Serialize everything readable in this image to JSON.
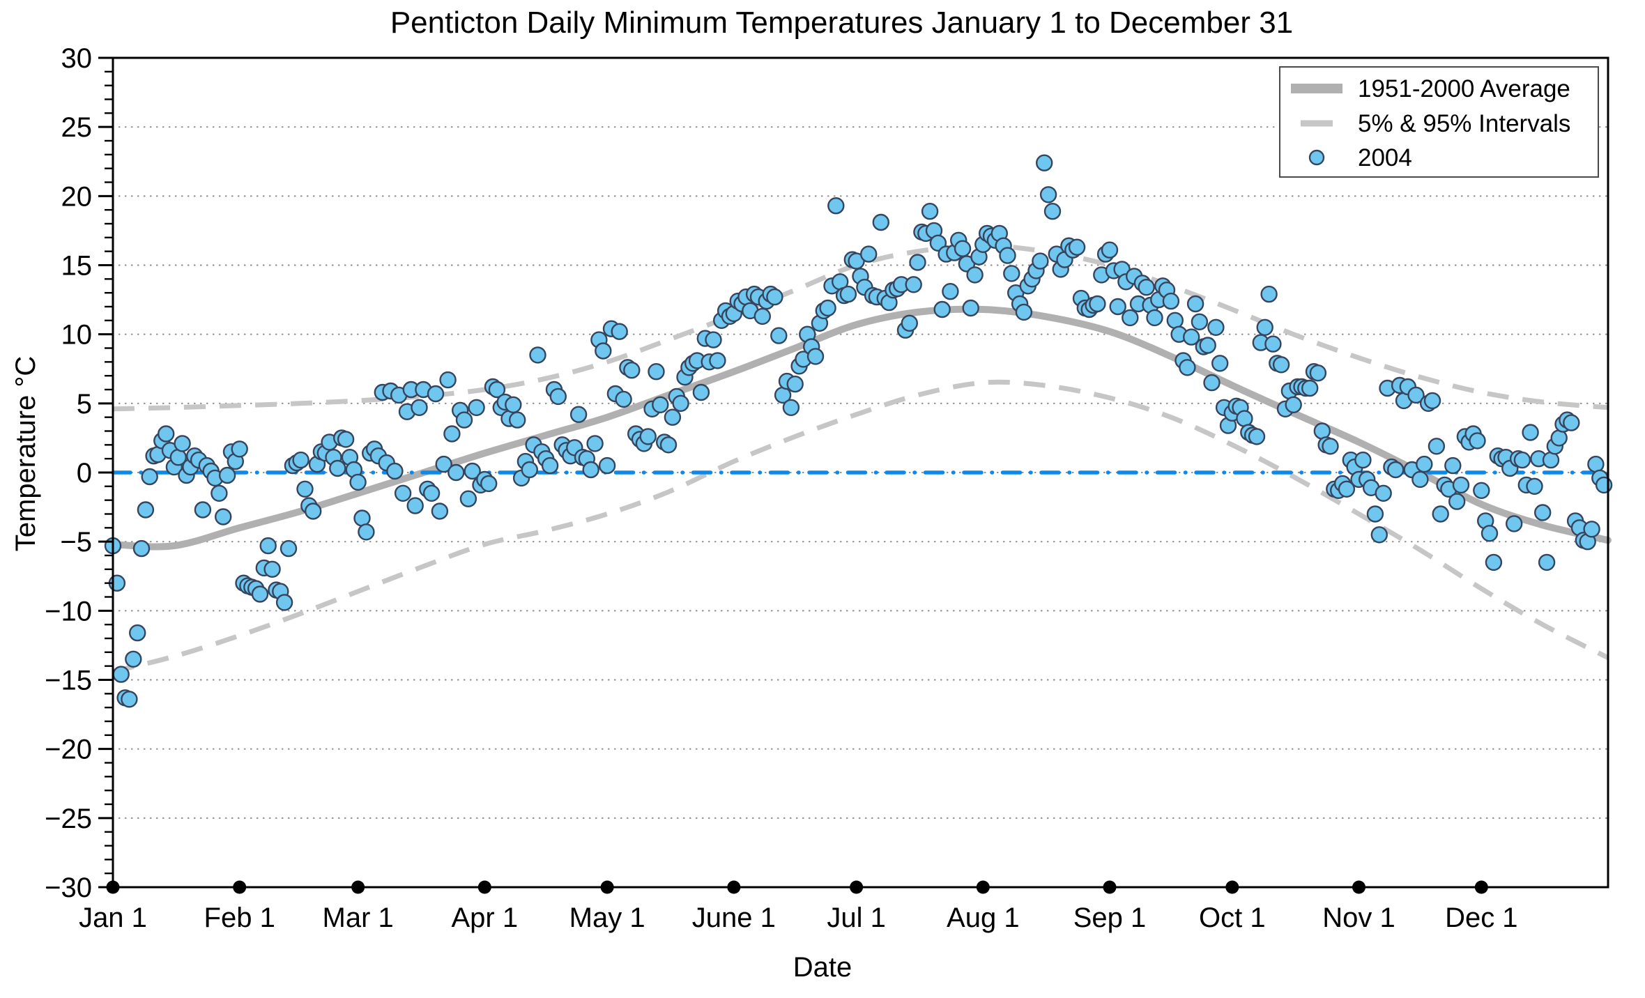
{
  "chart_data": {
    "type": "scatter",
    "title": "Penticton Daily Minimum Temperatures January 1 to December 31",
    "xlabel": "Date",
    "ylabel": "Temperature °C",
    "ylim": [
      -30,
      30
    ],
    "grid": true,
    "y_ticks": [
      30,
      25,
      20,
      15,
      10,
      5,
      0,
      -5,
      -10,
      -15,
      -20,
      -25,
      -30
    ],
    "y_minor_tick_step": 1,
    "x_tick_labels": [
      "Jan 1",
      "Feb 1",
      "Mar 1",
      "Apr 1",
      "May 1",
      "June 1",
      "Jul 1",
      "Aug 1",
      "Sep 1",
      "Oct 1",
      "Nov 1",
      "Dec 1"
    ],
    "month_start_days": [
      0,
      31,
      60,
      91,
      121,
      152,
      182,
      213,
      244,
      274,
      305,
      335
    ],
    "days_in_year": 366,
    "zero_reference_line": {
      "value": 0,
      "color": "#0f88e8",
      "style": "dash-dot"
    },
    "colors": {
      "marker_fill": "#6fc7f0",
      "marker_edge": "#36455e",
      "average_line": "#b0b0b0",
      "interval_line": "#c6c6c6",
      "gridline": "#8f8f8f",
      "axis": "#000000"
    },
    "legend": {
      "position": "top-right",
      "entries": [
        {
          "label": "1951-2000 Average",
          "swatch": "thick-line",
          "color": "#b0b0b0"
        },
        {
          "label": "5% & 95% Intervals",
          "swatch": "dashed-line",
          "color": "#c6c6c6"
        },
        {
          "label": "2004",
          "swatch": "circle-marker",
          "fill": "#6fc7f0",
          "edge": "#36455e"
        }
      ]
    },
    "series": [
      {
        "name": "2004",
        "type": "scatter",
        "unit": "°C",
        "daily_min_temp_c": [
          -5.3,
          -8,
          -14.6,
          -16.3,
          -16.4,
          -13.5,
          -11.6,
          -5.5,
          -2.7,
          -0.3,
          1.2,
          1.3,
          2.3,
          2.8,
          1.6,
          0.4,
          1.1,
          2.1,
          -0.2,
          0.4,
          1.2,
          0.9,
          -2.7,
          0.5,
          0.1,
          -0.4,
          -1.5,
          -3.2,
          -0.2,
          1.5,
          0.8,
          1.7,
          -8,
          -8.2,
          -8.3,
          -8.4,
          -8.8,
          -6.9,
          -5.3,
          -7,
          -8.5,
          -8.6,
          -9.4,
          -5.5,
          0.5,
          0.7,
          0.9,
          -1.2,
          -2.4,
          -2.8,
          0.6,
          1.5,
          1.4,
          2.2,
          1.1,
          0.3,
          2.5,
          2.4,
          1.1,
          0.2,
          -0.7,
          -3.3,
          -4.3,
          1.4,
          1.7,
          1.2,
          5.8,
          0.7,
          5.9,
          0.1,
          5.6,
          -1.5,
          4.4,
          6,
          -2.4,
          4.7,
          6,
          -1.2,
          -1.5,
          5.7,
          -2.8,
          0.6,
          6.7,
          2.8,
          0,
          4.5,
          3.8,
          -1.9,
          0.1,
          4.7,
          -0.9,
          -0.5,
          -0.8,
          6.2,
          6,
          4.7,
          5.1,
          3.9,
          4.9,
          3.8,
          -0.4,
          0.8,
          0.2,
          2,
          8.5,
          1.5,
          1,
          0.5,
          6,
          5.5,
          2,
          1.6,
          1.2,
          1.8,
          4.2,
          1.1,
          1,
          0.2,
          2.1,
          9.6,
          8.8,
          0.5,
          10.4,
          5.7,
          10.2,
          5.3,
          7.6,
          7.4,
          2.8,
          2.4,
          2.1,
          2.6,
          4.6,
          7.3,
          4.9,
          2.2,
          2,
          4,
          5.5,
          5,
          6.9,
          7.6,
          7.9,
          8.1,
          5.8,
          9.7,
          8,
          9.6,
          8.1,
          11,
          11.7,
          11.3,
          11.5,
          12.4,
          12.2,
          12.7,
          11.7,
          12.9,
          12.7,
          11.3,
          12.4,
          12.9,
          12.7,
          9.9,
          5.6,
          6.6,
          4.7,
          6.4,
          7.7,
          8.2,
          10,
          9.1,
          8.4,
          10.8,
          11.7,
          11.9,
          13.5,
          19.3,
          13.8,
          12.8,
          12.9,
          15.4,
          15.3,
          14.2,
          13.4,
          15.8,
          12.8,
          12.7,
          18.1,
          12.6,
          12.3,
          13.2,
          13.3,
          13.6,
          10.3,
          10.8,
          13.6,
          15.2,
          17.4,
          17.3,
          18.9,
          17.5,
          16.6,
          11.8,
          15.8,
          13.1,
          15.9,
          16.8,
          16.2,
          15.1,
          11.9,
          14.3,
          15.6,
          16.5,
          17.3,
          17.1,
          16.8,
          17.3,
          16.4,
          15.7,
          14.4,
          13,
          12.2,
          11.6,
          13.5,
          14,
          14.6,
          15.3,
          22.4,
          20.1,
          18.9,
          15.8,
          14.7,
          15.4,
          16.4,
          16.1,
          16.3,
          12.6,
          11.9,
          11.8,
          12.1,
          12.2,
          14.3,
          15.8,
          16.1,
          14.6,
          12,
          14.7,
          13.8,
          11.2,
          14.2,
          12.2,
          13.7,
          13.4,
          12.1,
          11.2,
          12.5,
          13.5,
          13.2,
          12.4,
          11,
          10,
          8.1,
          7.6,
          9.8,
          12.2,
          10.9,
          9.1,
          9.2,
          6.5,
          10.5,
          7.9,
          4.7,
          3.4,
          4.3,
          4.8,
          4.7,
          3.9,
          2.9,
          2.7,
          2.6,
          9.4,
          10.5,
          12.9,
          9.3,
          7.9,
          7.8,
          4.6,
          5.9,
          4.9,
          6.2,
          6.2,
          6.1,
          6.1,
          7.3,
          7.2,
          3,
          2,
          1.9,
          -1.2,
          -1.3,
          -0.8,
          -1.2,
          0.9,
          0.4,
          -0.5,
          0.9,
          -0.5,
          -1.1,
          -3,
          -4.5,
          -1.5,
          6.1,
          0.4,
          0.2,
          6.3,
          5.2,
          6.2,
          0.2,
          5.6,
          -0.5,
          0.6,
          5,
          5.2,
          1.9,
          -3,
          -0.9,
          -1.2,
          0.5,
          -2.1,
          -0.9,
          2.6,
          2.2,
          2.8,
          2.3,
          -1.3,
          -3.5,
          -4.4,
          -6.5,
          1.2,
          1,
          1.1,
          0.3,
          -3.7,
          1,
          0.9,
          -0.9,
          2.9,
          -1,
          1,
          -2.9,
          -6.5,
          0.9,
          1.9,
          2.5,
          3.5,
          3.8,
          3.6,
          -3.5,
          -4,
          -4.9,
          -5,
          -4.1,
          0.6,
          -0.4,
          -0.9
        ]
      },
      {
        "name": "1951-2000 Average",
        "type": "line",
        "days": [
          0,
          15,
          31,
          46,
          60,
          75,
          91,
          106,
          121,
          136,
          152,
          167,
          182,
          197,
          213,
          228,
          244,
          259,
          274,
          289,
          305,
          320,
          335,
          350,
          366
        ],
        "values": [
          -5.2,
          -5.3,
          -4.0,
          -2.8,
          -1.5,
          -0.1,
          1.4,
          2.7,
          4.0,
          5.6,
          7.3,
          9.0,
          10.7,
          11.6,
          11.8,
          11.3,
          10.2,
          8.4,
          6.3,
          4.3,
          2.2,
          0.0,
          -2.3,
          -3.8,
          -4.9
        ]
      },
      {
        "name": "5% & 95% Intervals",
        "type": "dashed-lines",
        "days": [
          0,
          15,
          31,
          46,
          60,
          75,
          91,
          106,
          121,
          136,
          152,
          167,
          182,
          197,
          213,
          228,
          244,
          259,
          274,
          289,
          305,
          320,
          335,
          350,
          366
        ],
        "upper_95": [
          4.6,
          4.7,
          4.85,
          5.0,
          5.2,
          5.5,
          6.0,
          6.8,
          8.0,
          9.6,
          11.4,
          13.2,
          15.0,
          16.0,
          16.4,
          16.0,
          15.0,
          13.5,
          11.8,
          10.0,
          8.3,
          6.9,
          5.8,
          5.1,
          4.7
        ],
        "lower_5": [
          -14.4,
          -13.3,
          -11.8,
          -10.2,
          -8.6,
          -6.9,
          -5.2,
          -4.2,
          -3.0,
          -1.4,
          0.8,
          2.6,
          4.2,
          5.6,
          6.5,
          6.3,
          5.4,
          4.0,
          2.0,
          -0.3,
          -3.0,
          -5.6,
          -8.4,
          -11.0,
          -13.4
        ]
      }
    ]
  }
}
